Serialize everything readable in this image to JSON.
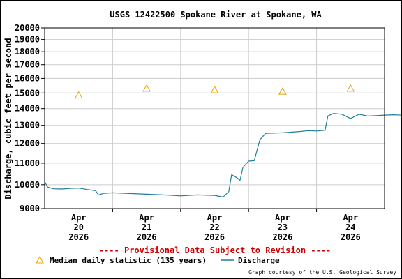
{
  "chart_data": {
    "type": "line",
    "title": "USGS 12422500 Spokane River at Spokane, WA",
    "ylabel": "Discharge, cubic feet per second",
    "y_scale": "log",
    "ylim": [
      9000,
      20000
    ],
    "y_ticks": [
      9000,
      10000,
      11000,
      12000,
      13000,
      14000,
      15000,
      16000,
      17000,
      18000,
      19000,
      20000
    ],
    "xlim": [
      "2026-04-19 12:00",
      "2026-04-24 12:00"
    ],
    "x_ticks": [
      {
        "x": "2026-04-20",
        "label": [
          "Apr",
          "20",
          "2026"
        ]
      },
      {
        "x": "2026-04-21",
        "label": [
          "Apr",
          "21",
          "2026"
        ]
      },
      {
        "x": "2026-04-22",
        "label": [
          "Apr",
          "22",
          "2026"
        ]
      },
      {
        "x": "2026-04-23",
        "label": [
          "Apr",
          "23",
          "2026"
        ]
      },
      {
        "x": "2026-04-24",
        "label": [
          "Apr",
          "24",
          "2026"
        ]
      }
    ],
    "grid": true,
    "series": [
      {
        "name": "Median daily statistic (135 years)",
        "type": "scatter",
        "marker": "triangle",
        "color": "#e8a000",
        "points": [
          {
            "x": "2026-04-20 00:00",
            "y": 14850
          },
          {
            "x": "2026-04-21 00:00",
            "y": 15300
          },
          {
            "x": "2026-04-22 00:00",
            "y": 15200
          },
          {
            "x": "2026-04-23 00:00",
            "y": 15100
          },
          {
            "x": "2026-04-24 00:00",
            "y": 15300
          }
        ]
      },
      {
        "name": "Discharge",
        "type": "line",
        "color": "#1f7f9f",
        "points": [
          {
            "x": "2026-04-19 12:00",
            "y": 10130
          },
          {
            "x": "2026-04-19 13:00",
            "y": 9900
          },
          {
            "x": "2026-04-19 15:00",
            "y": 9820
          },
          {
            "x": "2026-04-19 18:00",
            "y": 9810
          },
          {
            "x": "2026-04-19 21:00",
            "y": 9840
          },
          {
            "x": "2026-04-20 00:00",
            "y": 9850
          },
          {
            "x": "2026-04-20 03:00",
            "y": 9790
          },
          {
            "x": "2026-04-20 06:00",
            "y": 9740
          },
          {
            "x": "2026-04-20 07:00",
            "y": 9560
          },
          {
            "x": "2026-04-20 09:00",
            "y": 9630
          },
          {
            "x": "2026-04-20 12:00",
            "y": 9650
          },
          {
            "x": "2026-04-20 18:00",
            "y": 9620
          },
          {
            "x": "2026-04-21 00:00",
            "y": 9590
          },
          {
            "x": "2026-04-21 06:00",
            "y": 9560
          },
          {
            "x": "2026-04-21 12:00",
            "y": 9520
          },
          {
            "x": "2026-04-21 18:00",
            "y": 9560
          },
          {
            "x": "2026-04-22 00:00",
            "y": 9540
          },
          {
            "x": "2026-04-22 03:00",
            "y": 9470
          },
          {
            "x": "2026-04-22 05:00",
            "y": 9700
          },
          {
            "x": "2026-04-22 06:00",
            "y": 10450
          },
          {
            "x": "2026-04-22 08:00",
            "y": 10300
          },
          {
            "x": "2026-04-22 09:00",
            "y": 10200
          },
          {
            "x": "2026-04-22 10:00",
            "y": 10800
          },
          {
            "x": "2026-04-22 12:00",
            "y": 11100
          },
          {
            "x": "2026-04-22 14:00",
            "y": 11120
          },
          {
            "x": "2026-04-22 16:00",
            "y": 12200
          },
          {
            "x": "2026-04-22 18:00",
            "y": 12550
          },
          {
            "x": "2026-04-23 00:00",
            "y": 12580
          },
          {
            "x": "2026-04-23 06:00",
            "y": 12650
          },
          {
            "x": "2026-04-23 09:00",
            "y": 12700
          },
          {
            "x": "2026-04-23 12:00",
            "y": 12680
          },
          {
            "x": "2026-04-23 15:00",
            "y": 12720
          },
          {
            "x": "2026-04-23 16:00",
            "y": 13550
          },
          {
            "x": "2026-04-23 18:00",
            "y": 13700
          },
          {
            "x": "2026-04-23 21:00",
            "y": 13650
          },
          {
            "x": "2026-04-24 00:00",
            "y": 13400
          },
          {
            "x": "2026-04-24 03:00",
            "y": 13650
          },
          {
            "x": "2026-04-24 06:00",
            "y": 13550
          },
          {
            "x": "2026-04-24 09:00",
            "y": 13570
          },
          {
            "x": "2026-04-24 12:00",
            "y": 13600
          },
          {
            "x": "2026-04-24 15:00",
            "y": 13620
          },
          {
            "x": "2026-04-24 18:00",
            "y": 13600
          }
        ]
      }
    ]
  },
  "footer": {
    "provisional_notice": "---- Provisional Data Subject to Revision ----",
    "notice_color": "#cc0000",
    "legend_median_label": "Median daily statistic (135 years)",
    "legend_discharge_label": "Discharge",
    "credit": "Graph courtesy of the U.S. Geological Survey"
  }
}
